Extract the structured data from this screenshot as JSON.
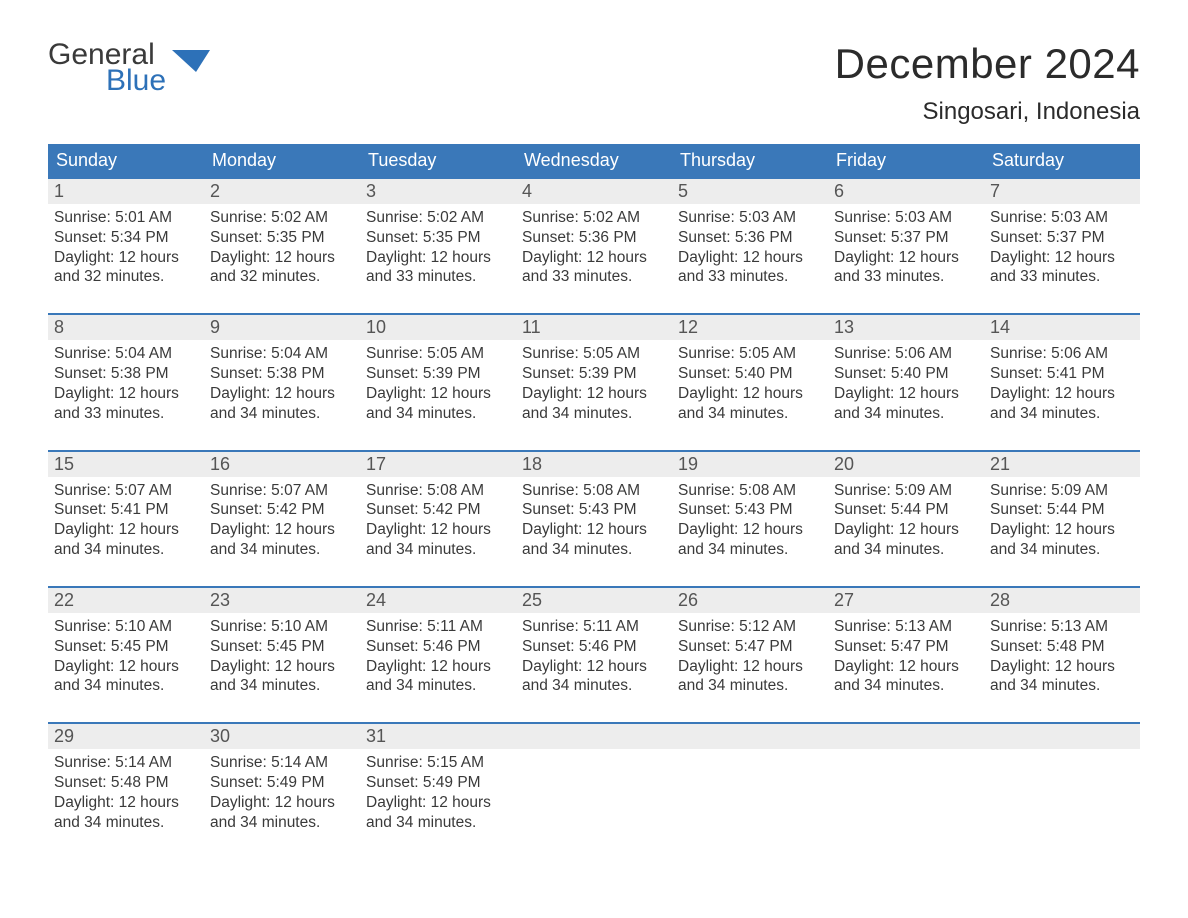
{
  "logo": {
    "top": "General",
    "bottom": "Blue",
    "flag_color": "#2d71b8"
  },
  "title": "December 2024",
  "subtitle": "Singosari, Indonesia",
  "colors": {
    "header_bg": "#3a78b9",
    "header_text": "#ffffff",
    "week_border": "#3a78b9",
    "daynum_bg": "#ededed",
    "body_text": "#3a3a3a",
    "page_bg": "#ffffff"
  },
  "typography": {
    "title_fontsize": 42,
    "subtitle_fontsize": 24,
    "dow_fontsize": 18,
    "daynum_fontsize": 18,
    "body_fontsize": 15.5,
    "font_family": "Arial"
  },
  "days_of_week": [
    "Sunday",
    "Monday",
    "Tuesday",
    "Wednesday",
    "Thursday",
    "Friday",
    "Saturday"
  ],
  "labels": {
    "sunrise": "Sunrise",
    "sunset": "Sunset",
    "daylight": "Daylight"
  },
  "weeks": [
    [
      {
        "n": "1",
        "sr": "5:01 AM",
        "ss": "5:34 PM",
        "dl": "12 hours and 32 minutes."
      },
      {
        "n": "2",
        "sr": "5:02 AM",
        "ss": "5:35 PM",
        "dl": "12 hours and 32 minutes."
      },
      {
        "n": "3",
        "sr": "5:02 AM",
        "ss": "5:35 PM",
        "dl": "12 hours and 33 minutes."
      },
      {
        "n": "4",
        "sr": "5:02 AM",
        "ss": "5:36 PM",
        "dl": "12 hours and 33 minutes."
      },
      {
        "n": "5",
        "sr": "5:03 AM",
        "ss": "5:36 PM",
        "dl": "12 hours and 33 minutes."
      },
      {
        "n": "6",
        "sr": "5:03 AM",
        "ss": "5:37 PM",
        "dl": "12 hours and 33 minutes."
      },
      {
        "n": "7",
        "sr": "5:03 AM",
        "ss": "5:37 PM",
        "dl": "12 hours and 33 minutes."
      }
    ],
    [
      {
        "n": "8",
        "sr": "5:04 AM",
        "ss": "5:38 PM",
        "dl": "12 hours and 33 minutes."
      },
      {
        "n": "9",
        "sr": "5:04 AM",
        "ss": "5:38 PM",
        "dl": "12 hours and 34 minutes."
      },
      {
        "n": "10",
        "sr": "5:05 AM",
        "ss": "5:39 PM",
        "dl": "12 hours and 34 minutes."
      },
      {
        "n": "11",
        "sr": "5:05 AM",
        "ss": "5:39 PM",
        "dl": "12 hours and 34 minutes."
      },
      {
        "n": "12",
        "sr": "5:05 AM",
        "ss": "5:40 PM",
        "dl": "12 hours and 34 minutes."
      },
      {
        "n": "13",
        "sr": "5:06 AM",
        "ss": "5:40 PM",
        "dl": "12 hours and 34 minutes."
      },
      {
        "n": "14",
        "sr": "5:06 AM",
        "ss": "5:41 PM",
        "dl": "12 hours and 34 minutes."
      }
    ],
    [
      {
        "n": "15",
        "sr": "5:07 AM",
        "ss": "5:41 PM",
        "dl": "12 hours and 34 minutes."
      },
      {
        "n": "16",
        "sr": "5:07 AM",
        "ss": "5:42 PM",
        "dl": "12 hours and 34 minutes."
      },
      {
        "n": "17",
        "sr": "5:08 AM",
        "ss": "5:42 PM",
        "dl": "12 hours and 34 minutes."
      },
      {
        "n": "18",
        "sr": "5:08 AM",
        "ss": "5:43 PM",
        "dl": "12 hours and 34 minutes."
      },
      {
        "n": "19",
        "sr": "5:08 AM",
        "ss": "5:43 PM",
        "dl": "12 hours and 34 minutes."
      },
      {
        "n": "20",
        "sr": "5:09 AM",
        "ss": "5:44 PM",
        "dl": "12 hours and 34 minutes."
      },
      {
        "n": "21",
        "sr": "5:09 AM",
        "ss": "5:44 PM",
        "dl": "12 hours and 34 minutes."
      }
    ],
    [
      {
        "n": "22",
        "sr": "5:10 AM",
        "ss": "5:45 PM",
        "dl": "12 hours and 34 minutes."
      },
      {
        "n": "23",
        "sr": "5:10 AM",
        "ss": "5:45 PM",
        "dl": "12 hours and 34 minutes."
      },
      {
        "n": "24",
        "sr": "5:11 AM",
        "ss": "5:46 PM",
        "dl": "12 hours and 34 minutes."
      },
      {
        "n": "25",
        "sr": "5:11 AM",
        "ss": "5:46 PM",
        "dl": "12 hours and 34 minutes."
      },
      {
        "n": "26",
        "sr": "5:12 AM",
        "ss": "5:47 PM",
        "dl": "12 hours and 34 minutes."
      },
      {
        "n": "27",
        "sr": "5:13 AM",
        "ss": "5:47 PM",
        "dl": "12 hours and 34 minutes."
      },
      {
        "n": "28",
        "sr": "5:13 AM",
        "ss": "5:48 PM",
        "dl": "12 hours and 34 minutes."
      }
    ],
    [
      {
        "n": "29",
        "sr": "5:14 AM",
        "ss": "5:48 PM",
        "dl": "12 hours and 34 minutes."
      },
      {
        "n": "30",
        "sr": "5:14 AM",
        "ss": "5:49 PM",
        "dl": "12 hours and 34 minutes."
      },
      {
        "n": "31",
        "sr": "5:15 AM",
        "ss": "5:49 PM",
        "dl": "12 hours and 34 minutes."
      },
      null,
      null,
      null,
      null
    ]
  ]
}
